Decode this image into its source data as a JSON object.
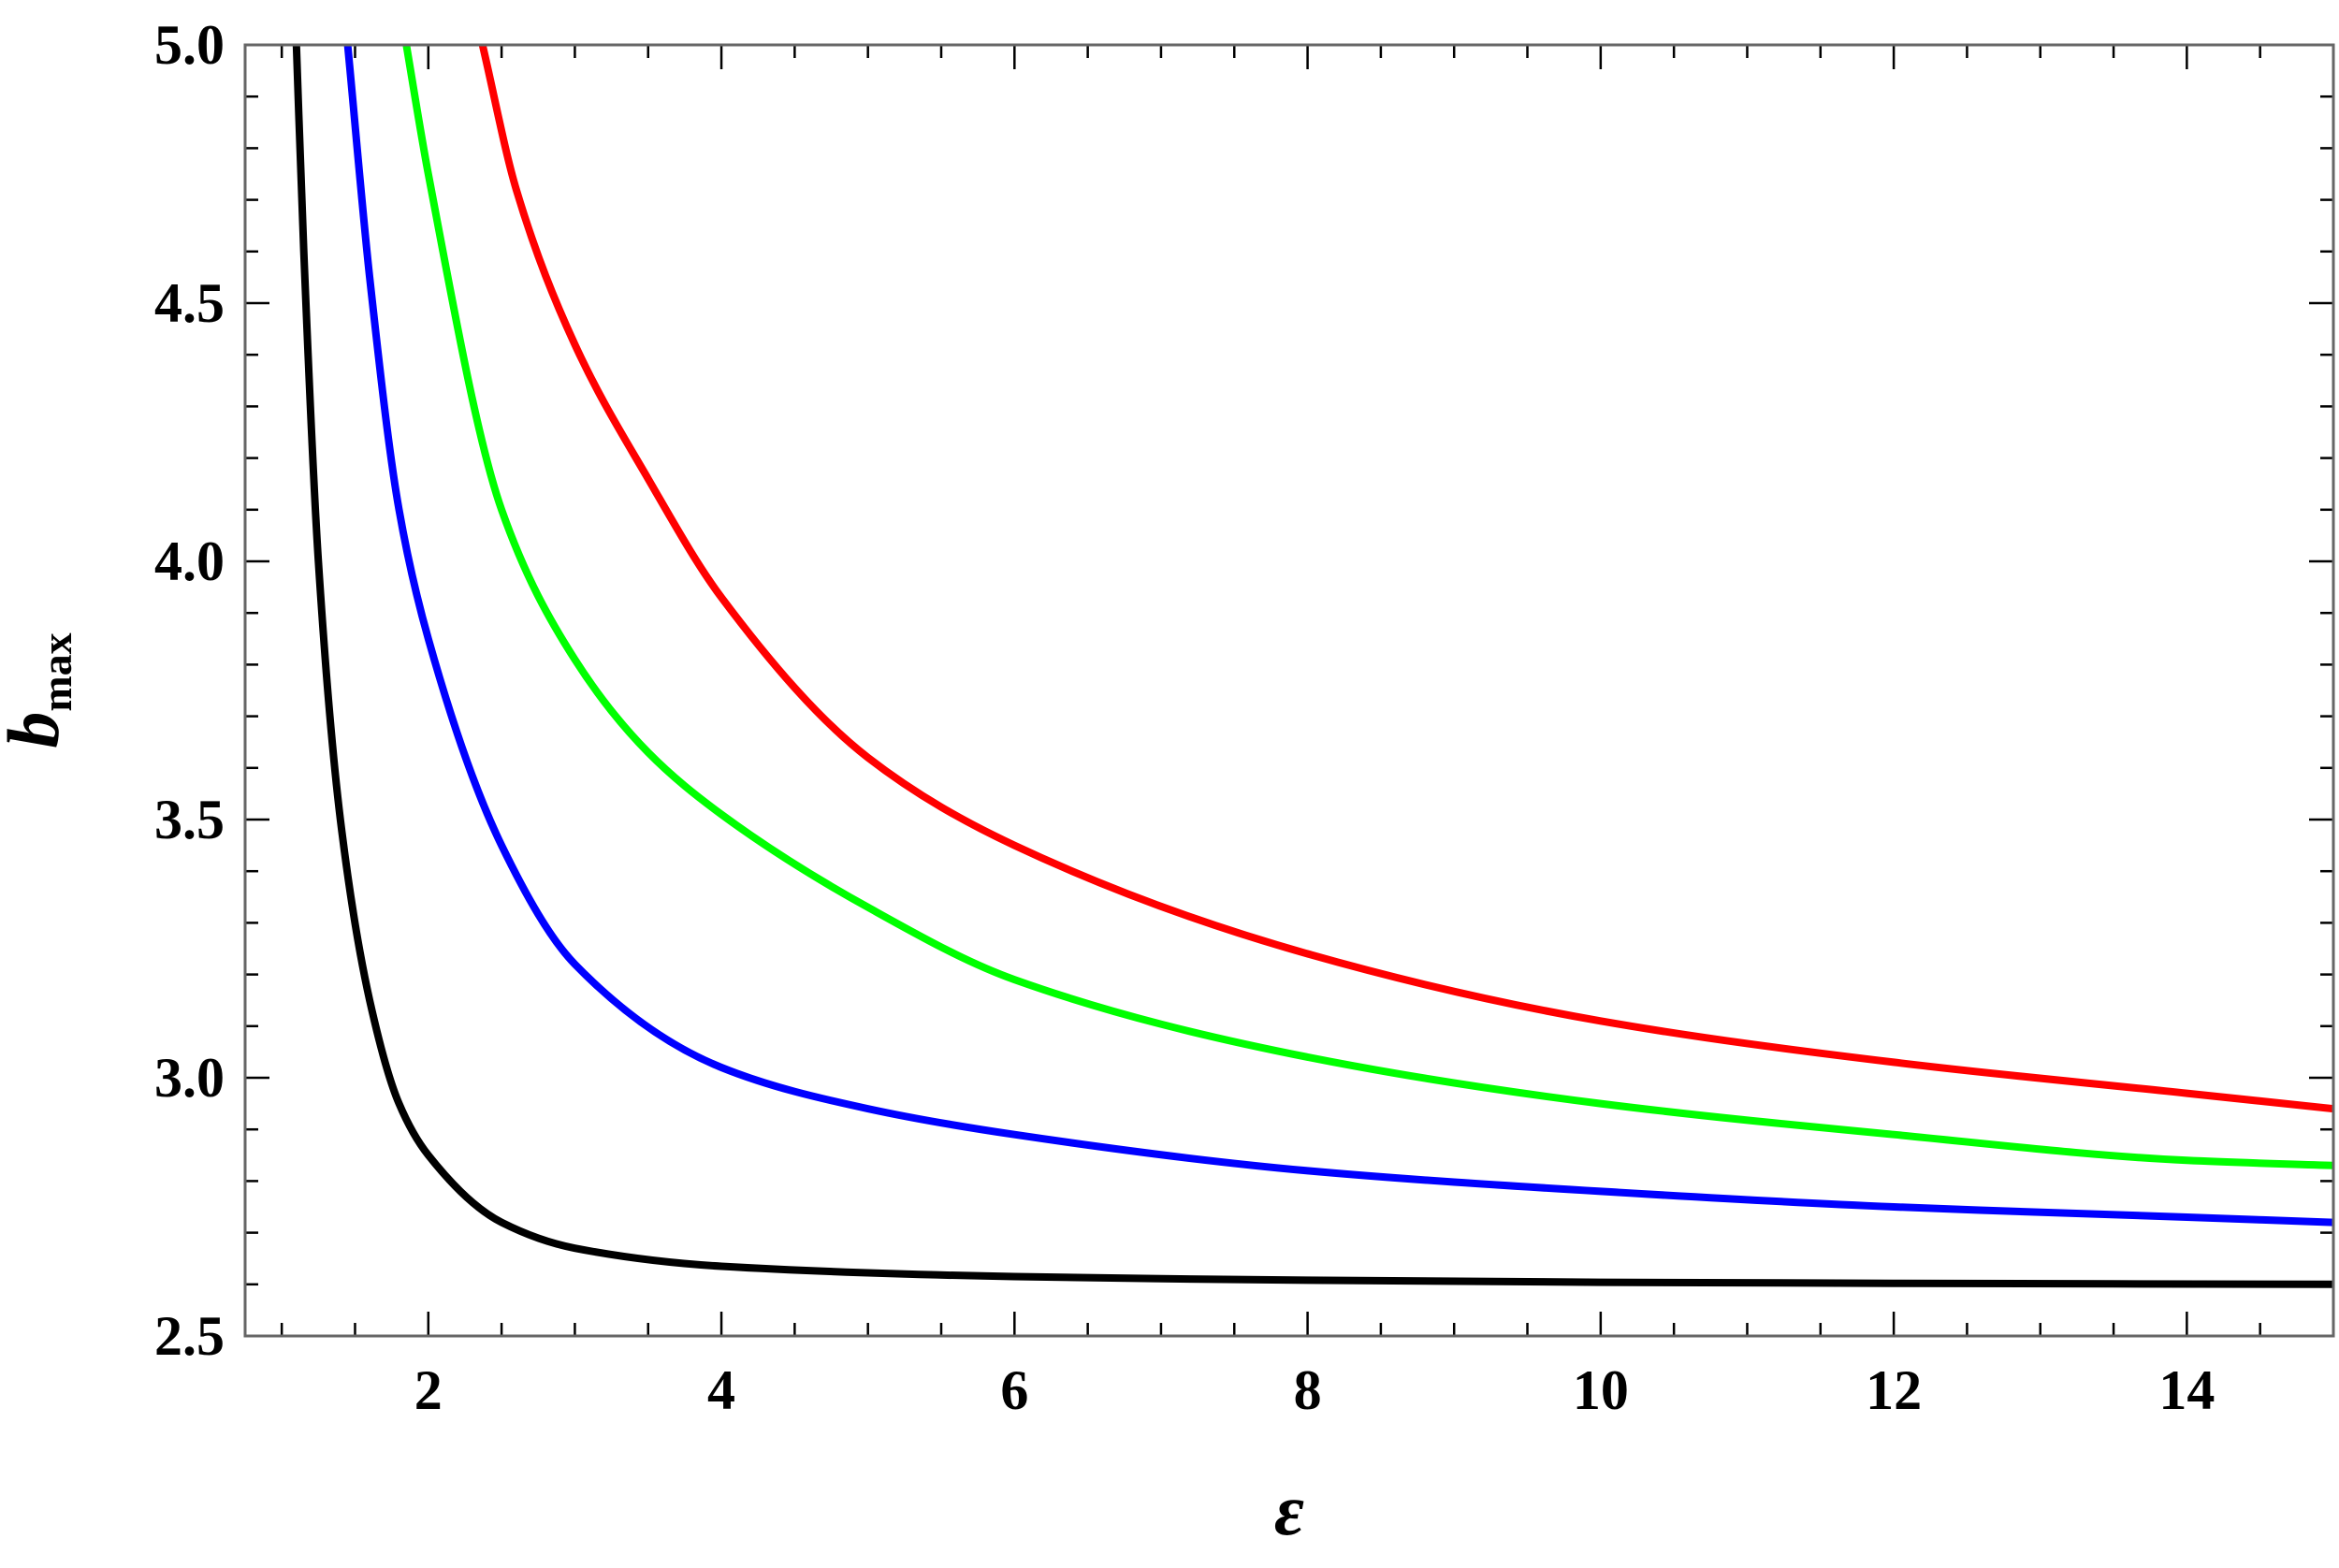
{
  "chart_data": {
    "type": "line",
    "title": "",
    "xlabel": "ε",
    "ylabel": {
      "main": "b",
      "sub": "max"
    },
    "xlim": [
      0.75,
      15.0
    ],
    "ylim": [
      2.5,
      5.0
    ],
    "x_ticks": [
      2,
      4,
      6,
      8,
      10,
      12,
      14
    ],
    "x_tick_labels": [
      "2",
      "4",
      "6",
      "8",
      "10",
      "12",
      "14"
    ],
    "y_ticks": [
      2.5,
      3.0,
      3.5,
      4.0,
      4.5,
      5.0
    ],
    "y_tick_labels": [
      "2.5",
      "3.0",
      "3.5",
      "4.0",
      "4.5",
      "5.0"
    ],
    "grid": false,
    "legend": "none",
    "series": [
      {
        "color": "#ff0000",
        "x": [
          2.37,
          2.6,
          3.0,
          3.5,
          4.0,
          5.0,
          6.0,
          8.0,
          10.0,
          12.0,
          14.0,
          15.0
        ],
        "y": [
          5.0,
          4.72,
          4.42,
          4.16,
          3.93,
          3.62,
          3.45,
          3.24,
          3.11,
          3.03,
          2.97,
          2.94
        ]
      },
      {
        "color": "#00ff00",
        "x": [
          1.85,
          2.0,
          2.5,
          3.0,
          3.5,
          4.0,
          5.0,
          6.0,
          8.0,
          10.0,
          12.0,
          14.0,
          15.0
        ],
        "y": [
          5.0,
          4.75,
          4.1,
          3.81,
          3.63,
          3.51,
          3.33,
          3.19,
          3.04,
          2.95,
          2.89,
          2.84,
          2.83
        ]
      },
      {
        "color": "#0000ff",
        "x": [
          1.45,
          1.6,
          1.8,
          2.0,
          2.5,
          3.0,
          4.0,
          5.0,
          6.0,
          8.0,
          10.0,
          12.0,
          14.0,
          15.0
        ],
        "y": [
          5.0,
          4.55,
          4.1,
          3.85,
          3.45,
          3.22,
          3.02,
          2.94,
          2.89,
          2.82,
          2.78,
          2.75,
          2.73,
          2.72
        ]
      },
      {
        "color": "#000000",
        "x": [
          1.1,
          1.15,
          1.25,
          1.4,
          1.6,
          1.8,
          2.0,
          2.5,
          3.0,
          4.0,
          6.0,
          8.0,
          10.0,
          12.0,
          15.0
        ],
        "y": [
          5.0,
          4.6,
          4.0,
          3.5,
          3.15,
          2.95,
          2.85,
          2.72,
          2.67,
          2.635,
          2.615,
          2.608,
          2.604,
          2.602,
          2.6
        ]
      }
    ]
  }
}
